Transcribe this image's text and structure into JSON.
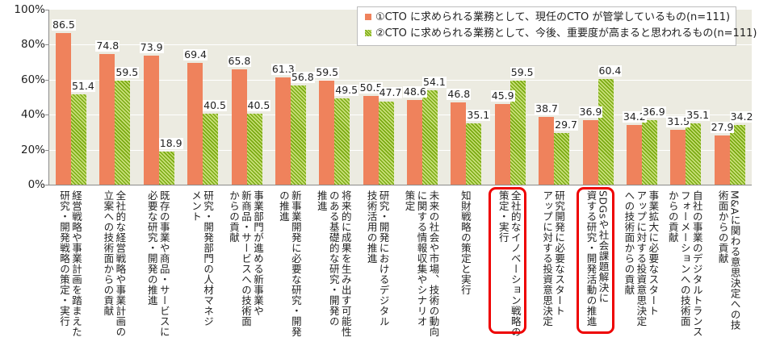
{
  "chart_data": {
    "type": "bar",
    "title": "",
    "xlabel": "",
    "ylabel": "",
    "ylim": [
      0,
      100
    ],
    "yticks": [
      "0%",
      "20%",
      "40%",
      "60%",
      "80%",
      "100%"
    ],
    "grid": true,
    "legend_position": "top-right",
    "categories": [
      "経営戦略や事業計画を踏まえた研究・開発戦略の策定・実行",
      "全社的な経営戦略や事業計画の立案への技術面からの貢献",
      "既存の事業や商品・サービスに必要な研究・開発の推進",
      "研究・開発部門の人材マネジメント",
      "事業部門が進める新事業や新商品・サービスへの技術面からの貢献",
      "新事業開発に必要な研究・開発の推進",
      "将来的に成果を生み出す可能性のある基礎的な研究・開発の推進",
      "研究・開発におけるデジタル技術活用の推進",
      "未来の社会や市場、技術の動向に関する情報収集やシナリオ策定",
      "知財戦略の策定と実行",
      "全社的なイノベーション戦略の策定・実行",
      "研究開発に必要なスタートアップに対する投資意思決定",
      "SDGsや社会課題解決に資する研究・開発活動の推進",
      "事業拡大に必要なスタートアップに対する投資意思決定への技術面からの貢献",
      "自社の事業のデジタルトランスフォーメーションへの技術面からの貢献",
      "M&Aに関わる意思決定への技術面からの貢献"
    ],
    "series": [
      {
        "name": "①CTO に求められる業務として、現任のCTO が管掌しているもの(n=111)",
        "color": "#ef825c",
        "pattern": "solid",
        "values": [
          86.5,
          74.8,
          73.9,
          69.4,
          65.8,
          61.3,
          59.5,
          50.5,
          48.6,
          46.8,
          45.9,
          38.7,
          36.9,
          34.2,
          31.5,
          27.9
        ]
      },
      {
        "name": "②CTO に求められる業務として、今後、重要度が高まると思われるもの(n=111)",
        "color": "#7aaa12",
        "pattern": "diagonal-hatch",
        "values": [
          51.4,
          59.5,
          18.9,
          40.5,
          40.5,
          56.8,
          49.5,
          47.7,
          54.1,
          35.1,
          59.5,
          29.7,
          60.4,
          36.9,
          35.1,
          34.2
        ]
      }
    ],
    "annotations": [
      {
        "type": "red-rounded-box",
        "category_index": 10
      },
      {
        "type": "red-rounded-box",
        "category_index": 12
      }
    ]
  },
  "labels": {
    "categories_display": [
      "経営戦略や事業計画を踏まえた\n研究・開発戦略の策定・実行",
      "全社的な経営戦略や事業計画の\n立案への技術面からの貢献",
      "既存の事業や商品・サービスに\n必要な研究・開発の推進",
      "研究・開発部門の人材マネジ\nメント",
      "事業部門が進める新事業や\n新商品・サービスへの技術面\nからの貢献",
      "新事業開発に必要な研究・開発\nの推進",
      "将来的に成果を生み出す可能性\nのある基礎的な研究・開発の\n推進",
      "研究・開発におけるデジタル\n技術活用の推進",
      "未来の社会や市場、技術の動向\nに関する情報収集やシナリオ\n策定",
      "知財戦略の策定と実行",
      "全社的なイノベーション戦略の\n策定・実行",
      "研究開発に必要なスタート\nアップに対する投資意思決定",
      "SDGsや社会課題解決に\n資する研究・開発活動の推進",
      "事業拡大に必要なスタート\nアップに対する投資意思決定\nへの技術面からの貢献",
      "自社の事業のデジタルトランス\nフォーメーションへの技術面\nからの貢献",
      "M&Aに関わる意思決定への技\n術面からの貢献"
    ]
  }
}
